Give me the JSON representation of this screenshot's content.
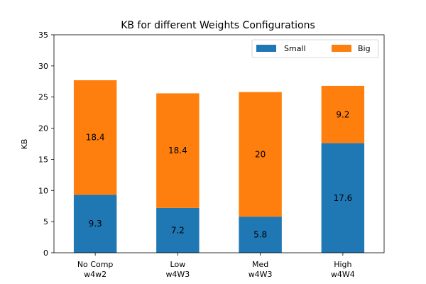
{
  "chart_data": {
    "type": "bar",
    "stacked": true,
    "title": "KB for different Weights Configurations",
    "xlabel": "",
    "ylabel": "KB",
    "ylim": [
      0,
      35
    ],
    "yticks": [
      0,
      5,
      10,
      15,
      20,
      25,
      30,
      35
    ],
    "grid": false,
    "legend_position": "top-right",
    "categories": [
      [
        "No Comp",
        "w4w2"
      ],
      [
        "Low",
        "w4W3"
      ],
      [
        "Med",
        "w4W3"
      ],
      [
        "High",
        "w4W4"
      ]
    ],
    "series": [
      {
        "name": "Small",
        "color": "#1f77b4",
        "values": [
          9.3,
          7.2,
          5.8,
          17.6
        ],
        "labels": [
          "9.3",
          "7.2",
          "5.8",
          "17.6"
        ]
      },
      {
        "name": "Big",
        "color": "#ff7f0e",
        "values": [
          18.4,
          18.4,
          20.0,
          9.2
        ],
        "labels": [
          "18.4",
          "18.4",
          "20",
          "9.2"
        ]
      }
    ]
  }
}
